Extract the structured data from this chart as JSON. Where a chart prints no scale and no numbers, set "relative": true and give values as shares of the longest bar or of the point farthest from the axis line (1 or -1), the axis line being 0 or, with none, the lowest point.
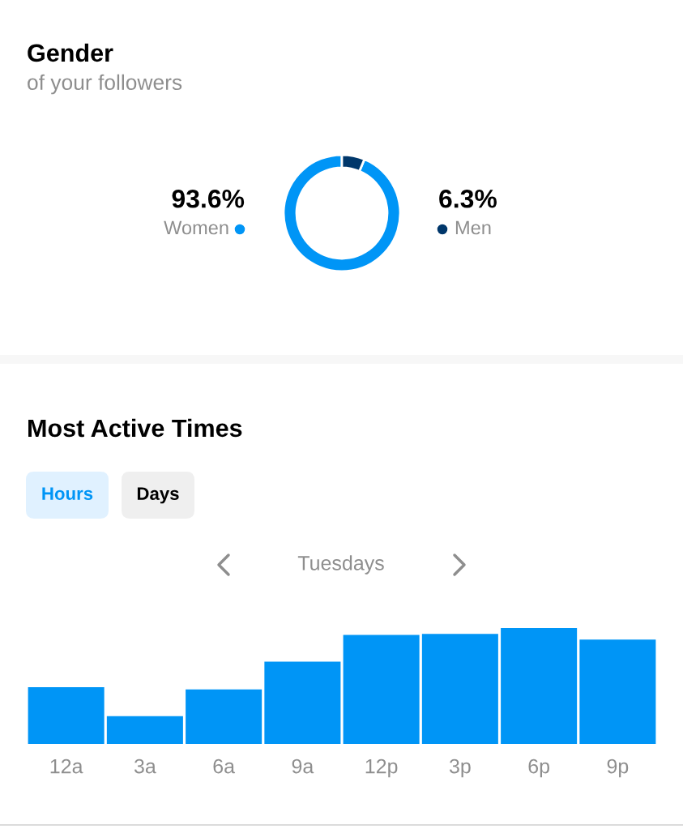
{
  "chart_data": [
    {
      "type": "donut",
      "title": "Gender",
      "subtitle": "of your followers",
      "categories": [
        "Women",
        "Men"
      ],
      "values": [
        93.6,
        6.3
      ],
      "colors": [
        "#0095f6",
        "#00376b"
      ],
      "value_labels": [
        "93.6%",
        "6.3%"
      ]
    },
    {
      "type": "bar",
      "title": "Most Active Times",
      "subtitle": "Tuesdays",
      "annotations": [
        "Hours",
        "Days"
      ],
      "categories": [
        "12a",
        "3a",
        "6a",
        "9a",
        "12p",
        "3p",
        "6p",
        "9p"
      ],
      "values": [
        0.49,
        0.24,
        0.47,
        0.71,
        0.94,
        0.95,
        1,
        0.9
      ],
      "color": "#0095f6",
      "relative": true
    }
  ]
}
